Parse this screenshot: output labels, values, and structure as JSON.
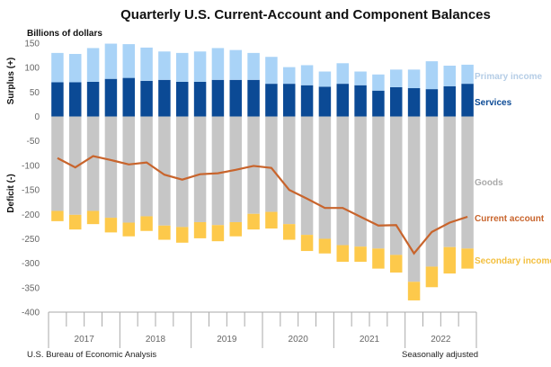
{
  "chart_data": {
    "type": "bar",
    "title": "Quarterly U.S. Current-Account and Component Balances",
    "ylabel_units": "Billions of dollars",
    "ylabel_surplus": "Surplus (+)",
    "ylabel_deficit": "Deficit (-)",
    "ylim": [
      -400,
      150
    ],
    "yticks": [
      150,
      100,
      50,
      0,
      -50,
      -100,
      -150,
      -200,
      -250,
      -300,
      -350,
      -400
    ],
    "years": [
      "2017",
      "2018",
      "2019",
      "2020",
      "2021",
      "2022"
    ],
    "quarters_per_year": 4,
    "series": [
      {
        "name": "Services",
        "color": "#0b4a95",
        "values": [
          70,
          70,
          71,
          77,
          79,
          73,
          75,
          71,
          71,
          75,
          75,
          75,
          67,
          67,
          64,
          61,
          67,
          64,
          53,
          60,
          58,
          56,
          62,
          67
        ]
      },
      {
        "name": "Primary income",
        "color": "#a9d3f7",
        "values": [
          60,
          58,
          69,
          72,
          69,
          68,
          58,
          59,
          62,
          65,
          61,
          55,
          55,
          34,
          41,
          31,
          42,
          28,
          33,
          36,
          38,
          57,
          42,
          39
        ]
      },
      {
        "name": "Goods",
        "color": "#c6c6c6",
        "values": [
          -193,
          -201,
          -193,
          -207,
          -217,
          -204,
          -223,
          -226,
          -216,
          -222,
          -216,
          -199,
          -195,
          -220,
          -242,
          -250,
          -263,
          -266,
          -270,
          -283,
          -338,
          -307,
          -267,
          -270
        ]
      },
      {
        "name": "Secondary income",
        "color": "#fdc94b",
        "values": [
          -21,
          -30,
          -27,
          -30,
          -28,
          -30,
          -29,
          -32,
          -33,
          -33,
          -29,
          -32,
          -34,
          -32,
          -33,
          -30,
          -34,
          -31,
          -41,
          -36,
          -38,
          -42,
          -54,
          -41
        ]
      },
      {
        "name": "Current account",
        "color": "#c8642c",
        "type": "line",
        "values": [
          -85,
          -104,
          -81,
          -89,
          -98,
          -94,
          -119,
          -129,
          -118,
          -116,
          -109,
          -101,
          -105,
          -150,
          -168,
          -187,
          -187,
          -205,
          -223,
          -222,
          -280,
          -236,
          -217,
          -205
        ]
      }
    ],
    "legend": {
      "primary_income": "Primary income",
      "services": "Services",
      "goods": "Goods",
      "current_account": "Current account",
      "secondary_income": "Secondary income"
    },
    "source": "U.S. Bureau  of Economic Analysis",
    "note": "Seasonally adjusted"
  }
}
